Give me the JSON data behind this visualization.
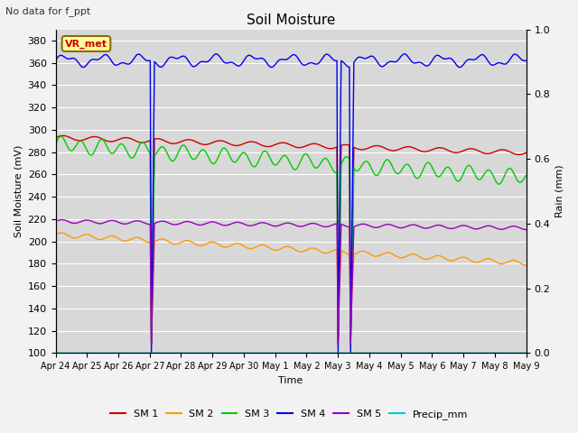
{
  "title": "Soil Moisture",
  "top_left_text": "No data for f_ppt",
  "ylabel_left": "Soil Moisture (mV)",
  "ylabel_right": "Rain (mm)",
  "xlabel": "Time",
  "ylim_left": [
    100,
    390
  ],
  "ylim_right": [
    0.0,
    1.0
  ],
  "background_color": "#d8d8d8",
  "grid_color": "#ffffff",
  "xtick_labels": [
    "Apr 24",
    "Apr 25",
    "Apr 26",
    "Apr 27",
    "Apr 28",
    "Apr 29",
    "Apr 30",
    "May 1",
    "May 2",
    "May 3",
    "May 4",
    "May 5",
    "May 6",
    "May 7",
    "May 8",
    "May 9"
  ],
  "vr_met_box": {
    "text": "VR_met",
    "facecolor": "#ffff99",
    "edgecolor": "#8B6914",
    "fontsize": 8
  },
  "sm1_color": "#cc0000",
  "sm2_color": "#ff9900",
  "sm3_color": "#00cc00",
  "sm4_color": "#0000ee",
  "sm5_color": "#9900bb",
  "precip_color": "#00cccc",
  "n_points": 2000,
  "total_days": 15
}
